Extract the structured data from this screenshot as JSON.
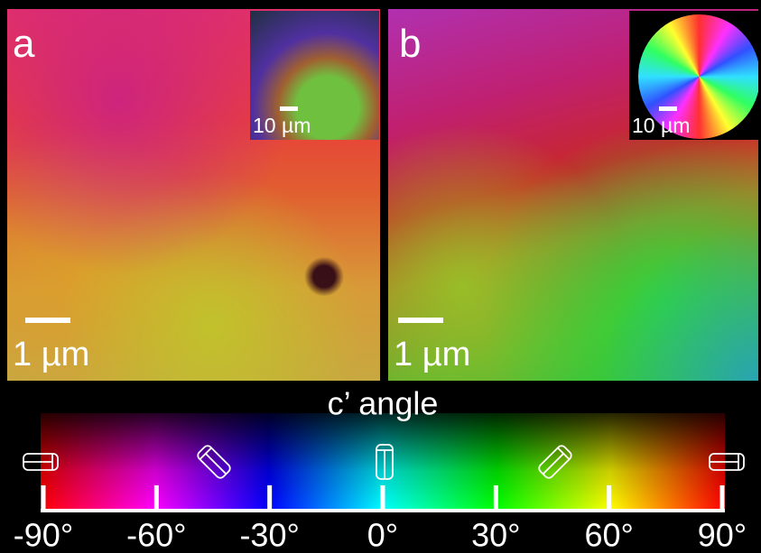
{
  "panels": [
    {
      "label": "a",
      "scale_bar": "1 µm",
      "inset_scale_bar": "10 µm"
    },
    {
      "label": "b",
      "scale_bar": "1 µm",
      "inset_scale_bar": "10 µm"
    }
  ],
  "colorbar": {
    "title": "c’ angle",
    "xlim": [
      -90,
      90
    ],
    "ticks": [
      {
        "value": -90,
        "label": "-90°"
      },
      {
        "value": -60,
        "label": "-60°"
      },
      {
        "value": -30,
        "label": "-30°"
      },
      {
        "value": 0,
        "label": "0°"
      },
      {
        "value": 30,
        "label": "30°"
      },
      {
        "value": 60,
        "label": "60°"
      },
      {
        "value": 90,
        "label": "90°"
      }
    ]
  }
}
